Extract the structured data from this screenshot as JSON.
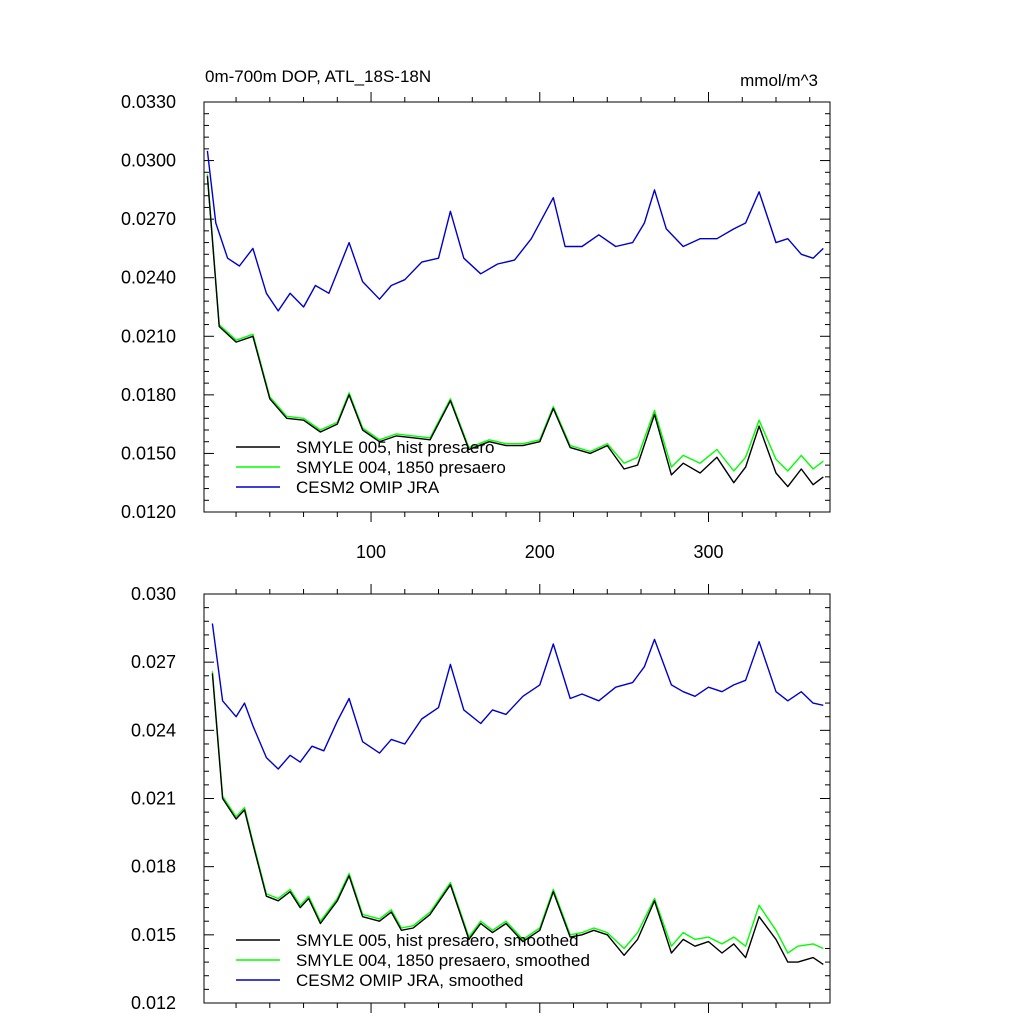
{
  "chart_data": [
    {
      "type": "line",
      "title_left": "0m-700m DOP, ATL_18S-18N",
      "title_right": "mmol/m^3",
      "xlim": [
        1,
        372
      ],
      "ylim": [
        0.012,
        0.033
      ],
      "x_ticks": [
        100,
        200,
        300
      ],
      "x_tick_labels": [
        "100",
        "200",
        "300"
      ],
      "y_ticks": [
        0.012,
        0.015,
        0.018,
        0.021,
        0.024,
        0.027,
        0.03,
        0.033
      ],
      "y_tick_labels": [
        "0.0120",
        "0.0150",
        "0.0180",
        "0.0210",
        "0.0240",
        "0.0270",
        "0.0300",
        "0.0330"
      ],
      "grid": false,
      "legend_position": "bottom-left",
      "series": [
        {
          "name": "SMYLE 005, hist presaero",
          "color": "#000000",
          "x": [
            3,
            10,
            20,
            30,
            40,
            50,
            60,
            70,
            80,
            87,
            95,
            105,
            115,
            125,
            135,
            147,
            158,
            170,
            180,
            190,
            200,
            208,
            218,
            230,
            240,
            250,
            258,
            268,
            278,
            285,
            295,
            305,
            315,
            322,
            330,
            340,
            347,
            355,
            362,
            368
          ],
          "values": [
            0.0292,
            0.0215,
            0.0207,
            0.021,
            0.0178,
            0.0168,
            0.0167,
            0.0161,
            0.0165,
            0.018,
            0.0162,
            0.0156,
            0.0159,
            0.0158,
            0.0157,
            0.0177,
            0.0152,
            0.0156,
            0.0154,
            0.0154,
            0.0156,
            0.0173,
            0.0153,
            0.015,
            0.0154,
            0.0142,
            0.0144,
            0.017,
            0.0139,
            0.0145,
            0.014,
            0.0148,
            0.0135,
            0.0143,
            0.0164,
            0.014,
            0.0133,
            0.0142,
            0.0134,
            0.0138
          ]
        },
        {
          "name": "SMYLE 004, 1850 presaero",
          "color": "#00ff00",
          "x": [
            3,
            10,
            20,
            30,
            40,
            50,
            60,
            70,
            80,
            87,
            95,
            105,
            115,
            125,
            135,
            147,
            158,
            170,
            180,
            190,
            200,
            208,
            218,
            230,
            240,
            250,
            258,
            268,
            278,
            285,
            295,
            305,
            315,
            322,
            330,
            340,
            347,
            355,
            362,
            368
          ],
          "values": [
            0.0293,
            0.0216,
            0.0208,
            0.0211,
            0.0179,
            0.0169,
            0.0168,
            0.0162,
            0.0166,
            0.0181,
            0.0163,
            0.0157,
            0.016,
            0.0159,
            0.0158,
            0.0178,
            0.0153,
            0.0157,
            0.0155,
            0.0155,
            0.0157,
            0.0174,
            0.0154,
            0.0151,
            0.0155,
            0.0145,
            0.0148,
            0.0172,
            0.0143,
            0.0149,
            0.0145,
            0.0152,
            0.0141,
            0.0148,
            0.0167,
            0.0147,
            0.0141,
            0.0149,
            0.0142,
            0.0146
          ]
        },
        {
          "name": "CESM2 OMIP JRA",
          "color": "#0000cc",
          "x": [
            3,
            8,
            15,
            22,
            30,
            38,
            45,
            52,
            60,
            67,
            75,
            87,
            95,
            105,
            112,
            120,
            130,
            140,
            147,
            155,
            165,
            175,
            185,
            195,
            208,
            215,
            225,
            235,
            245,
            255,
            262,
            268,
            275,
            285,
            295,
            305,
            315,
            322,
            330,
            340,
            347,
            355,
            362,
            368
          ],
          "values": [
            0.0305,
            0.0268,
            0.025,
            0.0246,
            0.0255,
            0.0232,
            0.0223,
            0.0232,
            0.0225,
            0.0236,
            0.0232,
            0.0258,
            0.0238,
            0.0229,
            0.0236,
            0.0239,
            0.0248,
            0.025,
            0.0274,
            0.025,
            0.0242,
            0.0247,
            0.0249,
            0.026,
            0.0281,
            0.0256,
            0.0256,
            0.0262,
            0.0256,
            0.0258,
            0.0268,
            0.0285,
            0.0265,
            0.0256,
            0.026,
            0.026,
            0.0265,
            0.0268,
            0.0284,
            0.0258,
            0.026,
            0.0252,
            0.025,
            0.0255
          ]
        }
      ]
    },
    {
      "type": "line",
      "xlim": [
        1,
        372
      ],
      "ylim": [
        0.012,
        0.03
      ],
      "x_ticks": [
        100,
        200,
        300
      ],
      "y_ticks": [
        0.012,
        0.015,
        0.018,
        0.021,
        0.024,
        0.027,
        0.03
      ],
      "y_tick_labels": [
        "0.012",
        "0.015",
        "0.018",
        "0.021",
        "0.024",
        "0.027",
        "0.030"
      ],
      "grid": false,
      "legend_position": "bottom-left",
      "series": [
        {
          "name": "SMYLE 005, hist presaero, smoothed",
          "color": "#000000",
          "x": [
            6,
            12,
            20,
            25,
            30,
            38,
            45,
            52,
            58,
            63,
            70,
            80,
            87,
            95,
            105,
            112,
            118,
            125,
            135,
            147,
            158,
            165,
            172,
            180,
            190,
            200,
            208,
            218,
            225,
            232,
            240,
            250,
            258,
            268,
            278,
            285,
            292,
            300,
            308,
            315,
            322,
            330,
            340,
            347,
            353,
            362,
            368
          ],
          "values": [
            0.0265,
            0.021,
            0.0201,
            0.0205,
            0.019,
            0.0167,
            0.0165,
            0.0169,
            0.0162,
            0.0166,
            0.0155,
            0.0165,
            0.0176,
            0.0158,
            0.0156,
            0.016,
            0.0152,
            0.0153,
            0.0159,
            0.0172,
            0.0148,
            0.0155,
            0.0151,
            0.0155,
            0.0147,
            0.0152,
            0.0169,
            0.0149,
            0.015,
            0.0152,
            0.015,
            0.0141,
            0.0148,
            0.0165,
            0.0142,
            0.0148,
            0.0145,
            0.0147,
            0.0142,
            0.0146,
            0.014,
            0.0158,
            0.0148,
            0.0138,
            0.0138,
            0.014,
            0.0137
          ]
        },
        {
          "name": "SMYLE 004, 1850 presaero, smoothed",
          "color": "#00ff00",
          "x": [
            6,
            12,
            20,
            25,
            30,
            38,
            45,
            52,
            58,
            63,
            70,
            80,
            87,
            95,
            105,
            112,
            118,
            125,
            135,
            147,
            158,
            165,
            172,
            180,
            190,
            200,
            208,
            218,
            225,
            232,
            240,
            250,
            258,
            268,
            278,
            285,
            292,
            300,
            308,
            315,
            322,
            330,
            340,
            347,
            353,
            362,
            368
          ],
          "values": [
            0.0266,
            0.0211,
            0.0202,
            0.0206,
            0.0191,
            0.0168,
            0.0166,
            0.017,
            0.0163,
            0.0167,
            0.0156,
            0.0166,
            0.0177,
            0.0159,
            0.0157,
            0.0161,
            0.0153,
            0.0154,
            0.016,
            0.0173,
            0.0149,
            0.0156,
            0.0152,
            0.0156,
            0.0148,
            0.0153,
            0.017,
            0.015,
            0.0151,
            0.0153,
            0.0151,
            0.0144,
            0.0151,
            0.0166,
            0.0145,
            0.0151,
            0.0148,
            0.0149,
            0.0146,
            0.0149,
            0.0145,
            0.0163,
            0.0152,
            0.0142,
            0.0145,
            0.0146,
            0.0144
          ]
        },
        {
          "name": "CESM2 OMIP JRA, smoothed",
          "color": "#0000cc",
          "x": [
            6,
            12,
            20,
            25,
            30,
            38,
            45,
            52,
            58,
            65,
            72,
            80,
            87,
            95,
            105,
            112,
            120,
            130,
            140,
            147,
            155,
            165,
            172,
            180,
            190,
            200,
            208,
            218,
            225,
            235,
            245,
            255,
            262,
            268,
            278,
            285,
            292,
            300,
            308,
            315,
            322,
            330,
            340,
            347,
            355,
            362,
            368
          ],
          "values": [
            0.0287,
            0.0253,
            0.0246,
            0.0252,
            0.0242,
            0.0228,
            0.0223,
            0.0229,
            0.0226,
            0.0233,
            0.0231,
            0.0244,
            0.0254,
            0.0235,
            0.023,
            0.0236,
            0.0234,
            0.0245,
            0.025,
            0.0269,
            0.0249,
            0.0243,
            0.0249,
            0.0247,
            0.0255,
            0.026,
            0.0278,
            0.0254,
            0.0256,
            0.0253,
            0.0259,
            0.0261,
            0.0268,
            0.028,
            0.026,
            0.0257,
            0.0255,
            0.0259,
            0.0257,
            0.026,
            0.0262,
            0.0279,
            0.0257,
            0.0253,
            0.0257,
            0.0252,
            0.0251
          ]
        }
      ]
    }
  ]
}
